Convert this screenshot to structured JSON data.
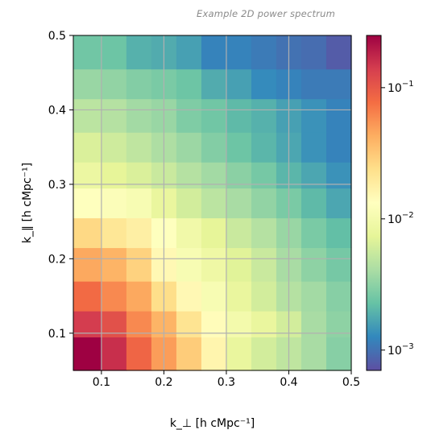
{
  "caption": "Example 2D power spectrum",
  "chart_data": {
    "type": "heatmap",
    "title": "",
    "xlabel": "k_⊥ [h cMpc⁻¹]",
    "ylabel": "k_∥ [h cMpc⁻¹]",
    "xlim": [
      0.055,
      0.5
    ],
    "ylim": [
      0.05,
      0.5
    ],
    "x_edges": [
      0.055,
      0.1,
      0.14,
      0.18,
      0.22,
      0.26,
      0.3,
      0.34,
      0.38,
      0.42,
      0.46,
      0.5
    ],
    "y_edges": [
      0.05,
      0.095,
      0.13,
      0.17,
      0.215,
      0.255,
      0.295,
      0.33,
      0.37,
      0.415,
      0.455,
      0.5
    ],
    "x_ticks": [
      0.1,
      0.2,
      0.3,
      0.4,
      0.5
    ],
    "x_tick_labels": [
      "0.1",
      "0.2",
      "0.3",
      "0.4",
      "0.5"
    ],
    "y_ticks": [
      0.1,
      0.2,
      0.3,
      0.4,
      0.5
    ],
    "y_tick_labels": [
      "0.1",
      "0.2",
      "0.3",
      "0.4",
      "0.5"
    ],
    "grid": true,
    "colormap": "Spectral_r",
    "color_scale": "log",
    "color_range": [
      0.0007,
      0.25
    ],
    "colorbar": {
      "ticks": [
        0.001,
        0.01,
        0.1
      ],
      "tick_labels": [
        {
          "base": "10",
          "exp": "−3"
        },
        {
          "base": "10",
          "exp": "−2"
        },
        {
          "base": "10",
          "exp": "−1"
        }
      ]
    },
    "values": [
      [
        0.25,
        0.16,
        0.085,
        0.05,
        0.03,
        0.016,
        0.008,
        0.006,
        0.005,
        0.004,
        0.003
      ],
      [
        0.14,
        0.11,
        0.06,
        0.04,
        0.022,
        0.014,
        0.01,
        0.008,
        0.006,
        0.004,
        0.0032
      ],
      [
        0.08,
        0.06,
        0.045,
        0.024,
        0.015,
        0.011,
        0.008,
        0.006,
        0.0045,
        0.0038,
        0.003
      ],
      [
        0.045,
        0.04,
        0.028,
        0.015,
        0.011,
        0.009,
        0.007,
        0.0055,
        0.004,
        0.0032,
        0.0026
      ],
      [
        0.026,
        0.021,
        0.018,
        0.013,
        0.0095,
        0.0075,
        0.0055,
        0.0045,
        0.0035,
        0.0027,
        0.0022
      ],
      [
        0.013,
        0.012,
        0.011,
        0.008,
        0.006,
        0.0048,
        0.004,
        0.0033,
        0.0027,
        0.0021,
        0.0017
      ],
      [
        0.0085,
        0.0075,
        0.0065,
        0.0055,
        0.0045,
        0.0038,
        0.0031,
        0.0026,
        0.002,
        0.0017,
        0.0014
      ],
      [
        0.0065,
        0.0058,
        0.005,
        0.0042,
        0.0036,
        0.0029,
        0.0024,
        0.002,
        0.0017,
        0.0014,
        0.0012
      ],
      [
        0.0048,
        0.0045,
        0.0038,
        0.0035,
        0.0028,
        0.0025,
        0.0021,
        0.0019,
        0.0016,
        0.0014,
        0.0012
      ],
      [
        0.0035,
        0.0033,
        0.0029,
        0.0027,
        0.0024,
        0.0018,
        0.0016,
        0.0013,
        0.0012,
        0.0011,
        0.0011
      ],
      [
        0.0025,
        0.0024,
        0.0019,
        0.0018,
        0.0016,
        0.0012,
        0.0012,
        0.0011,
        0.001,
        0.00095,
        0.0008
      ]
    ]
  }
}
